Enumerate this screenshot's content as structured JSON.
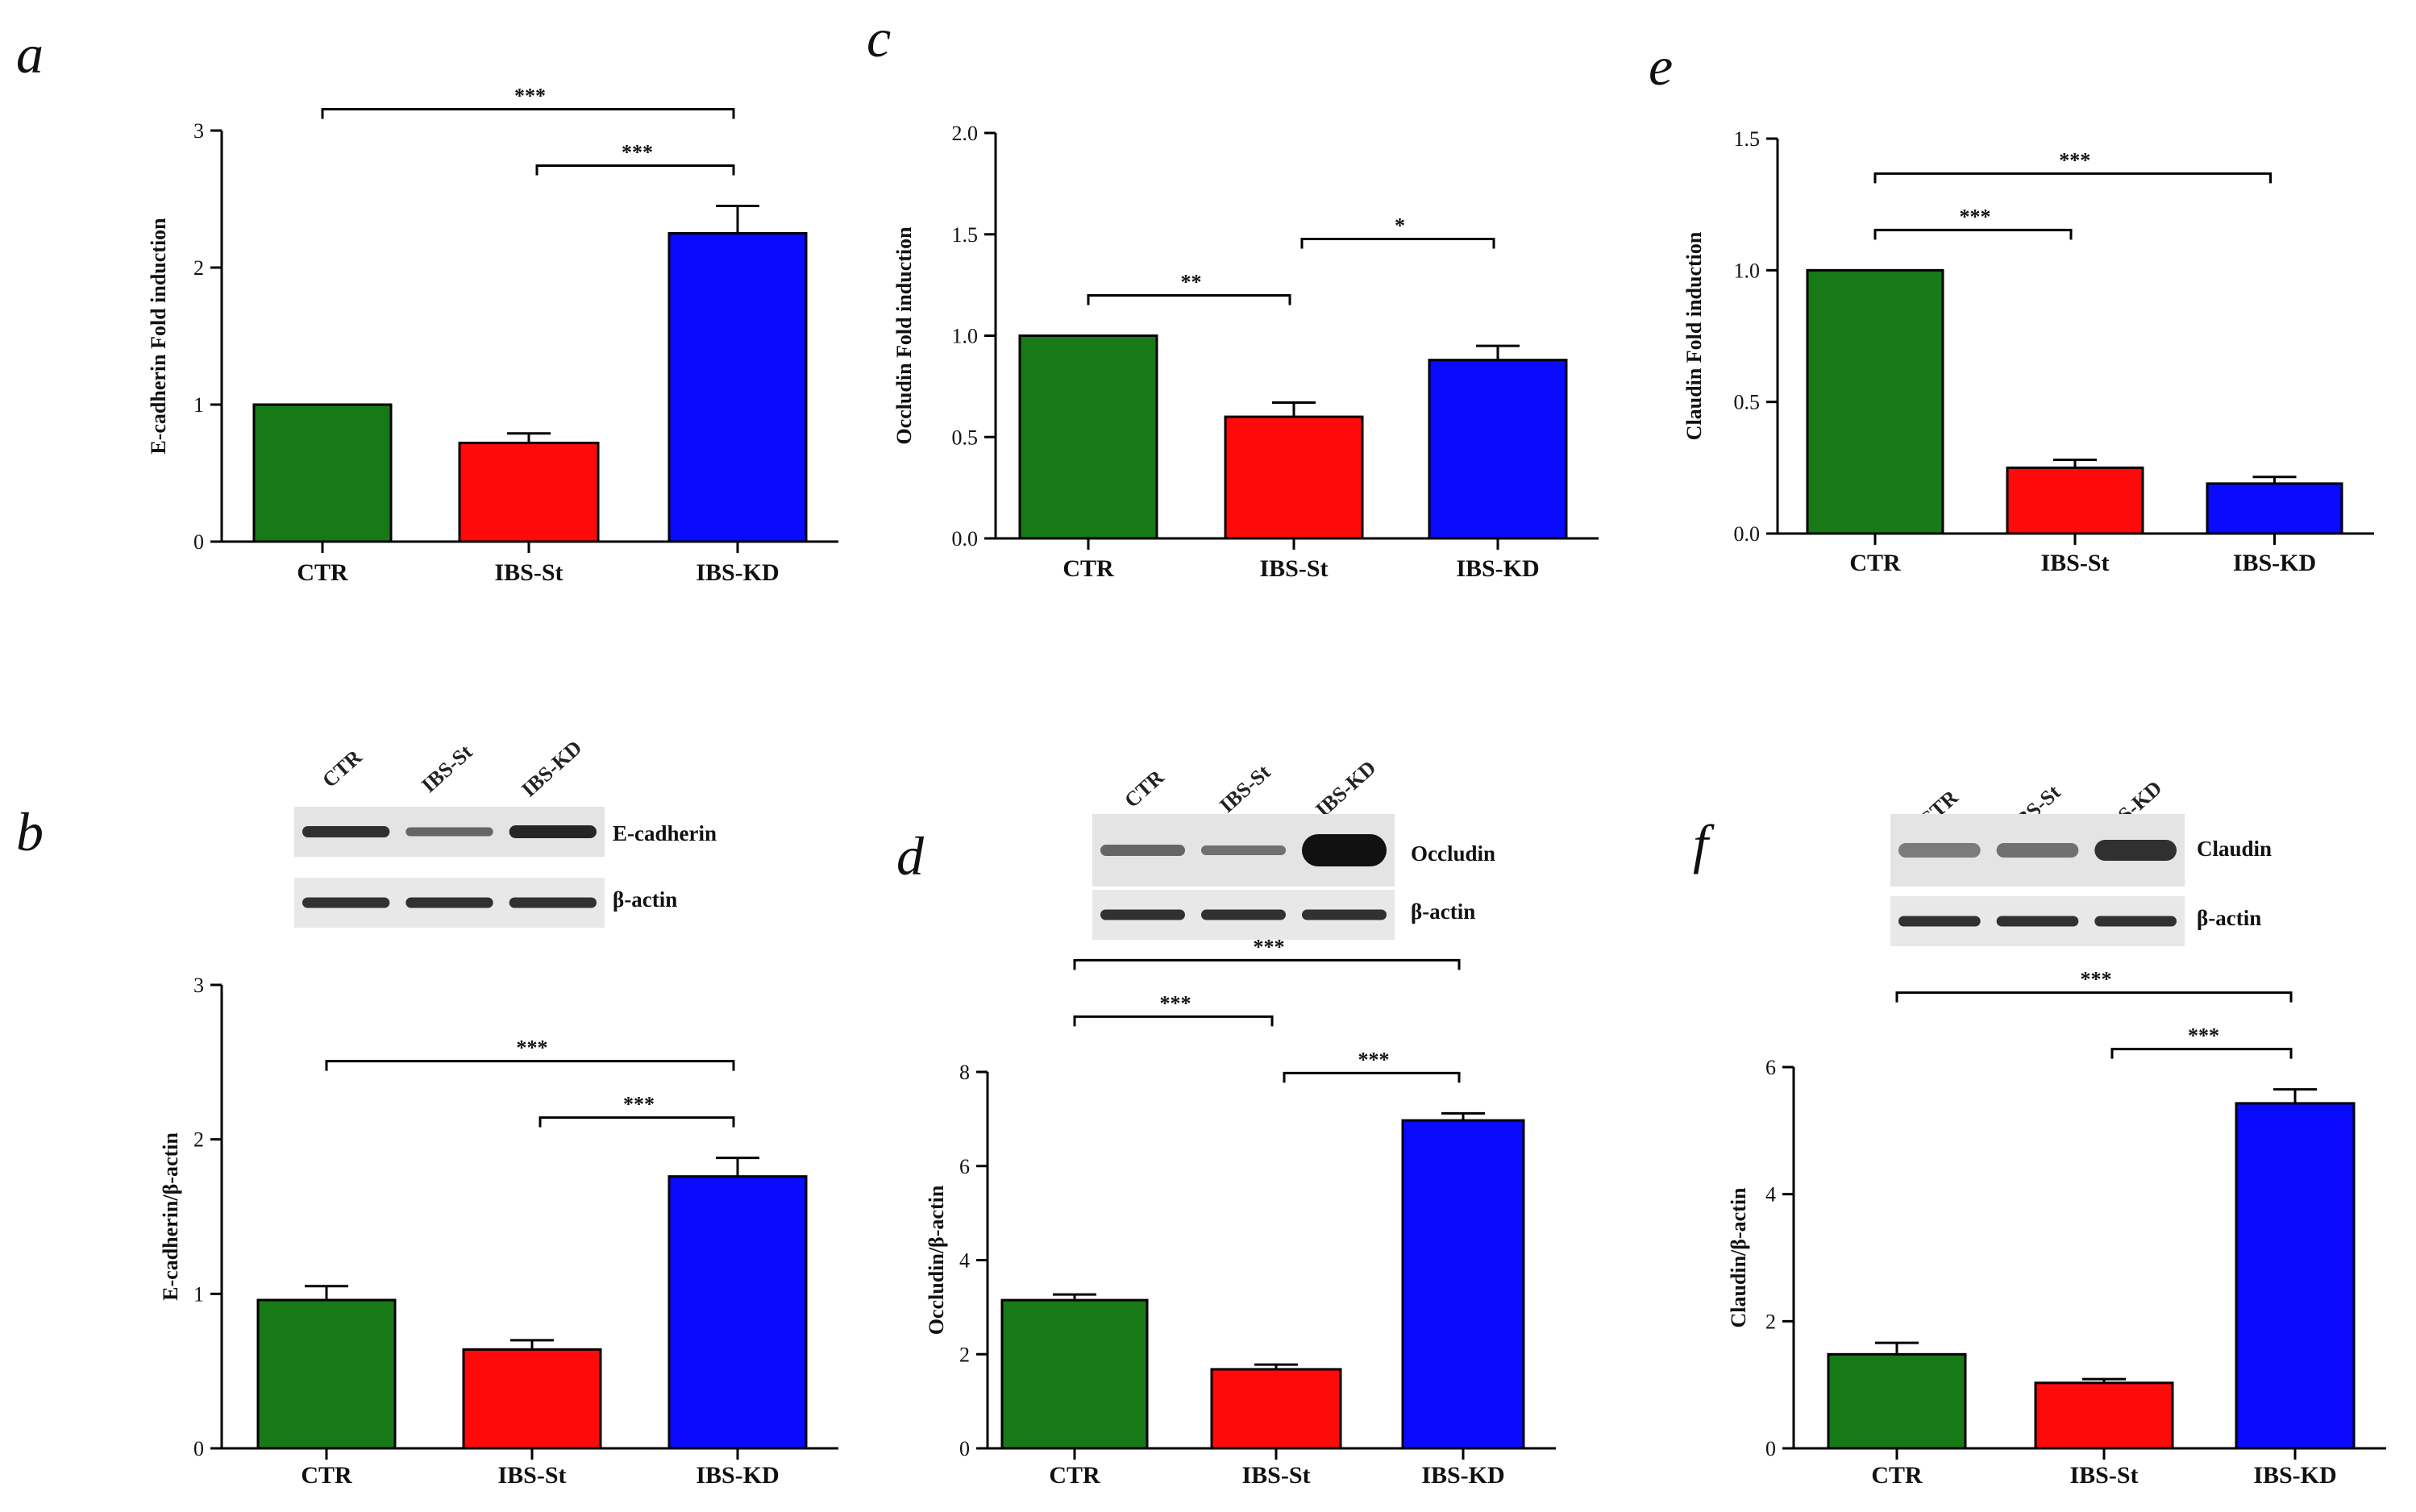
{
  "colors": {
    "ctr": "#177a17",
    "ibs_st": "#ff0a0a",
    "ibs_kd": "#0a0aff",
    "axis": "#000000"
  },
  "chart_data": [
    {
      "panel": "a",
      "type": "bar",
      "categories": [
        "CTR",
        "IBS-St",
        "IBS-KD"
      ],
      "values": [
        1.0,
        0.72,
        2.25
      ],
      "errors": [
        0,
        0.07,
        0.2
      ],
      "ylabel": "E-cadherin Fold induction",
      "ylim": [
        0,
        3
      ],
      "ticks": [
        {
          "v": 0,
          "label": "0"
        },
        {
          "v": 1,
          "label": "1"
        },
        {
          "v": 2,
          "label": "2"
        },
        {
          "v": 3,
          "label": "3"
        }
      ],
      "significance": [
        {
          "from": 0,
          "to": 2,
          "label": "***"
        },
        {
          "from": 1,
          "to": 2,
          "label": "***"
        }
      ]
    },
    {
      "panel": "c",
      "type": "bar",
      "categories": [
        "CTR",
        "IBS-St",
        "IBS-KD"
      ],
      "values": [
        1.0,
        0.6,
        0.88
      ],
      "errors": [
        0,
        0.07,
        0.07
      ],
      "ylabel": "Occludin Fold induction",
      "ylim": [
        0,
        2.0
      ],
      "ticks": [
        {
          "v": 0,
          "label": "0.0"
        },
        {
          "v": 0.5,
          "label": "0.5"
        },
        {
          "v": 1.0,
          "label": "1.0"
        },
        {
          "v": 1.5,
          "label": "1.5"
        },
        {
          "v": 2.0,
          "label": "2.0"
        }
      ],
      "significance": [
        {
          "from": 0,
          "to": 1,
          "label": "**"
        },
        {
          "from": 1,
          "to": 2,
          "label": "*"
        }
      ]
    },
    {
      "panel": "e",
      "type": "bar",
      "categories": [
        "CTR",
        "IBS-St",
        "IBS-KD"
      ],
      "values": [
        1.0,
        0.25,
        0.19
      ],
      "errors": [
        0,
        0.03,
        0.025
      ],
      "ylabel": "Claudin Fold induction",
      "ylim": [
        0,
        1.5
      ],
      "ticks": [
        {
          "v": 0,
          "label": "0.0"
        },
        {
          "v": 0.5,
          "label": "0.5"
        },
        {
          "v": 1.0,
          "label": "1.0"
        },
        {
          "v": 1.5,
          "label": "1.5"
        }
      ],
      "significance": [
        {
          "from": 0,
          "to": 2,
          "label": "***"
        },
        {
          "from": 0,
          "to": 1,
          "label": "***"
        }
      ]
    },
    {
      "panel": "b",
      "type": "bar",
      "categories": [
        "CTR",
        "IBS-St",
        "IBS-KD"
      ],
      "values": [
        0.96,
        0.64,
        1.76
      ],
      "errors": [
        0.09,
        0.06,
        0.12
      ],
      "ylabel": "E-cadherin/β-actin",
      "ylim": [
        0,
        3
      ],
      "ticks": [
        {
          "v": 0,
          "label": "0"
        },
        {
          "v": 1,
          "label": "1"
        },
        {
          "v": 2,
          "label": "2"
        },
        {
          "v": 3,
          "label": "3"
        }
      ],
      "significance": [
        {
          "from": 0,
          "to": 2,
          "label": "***"
        },
        {
          "from": 1,
          "to": 2,
          "label": "***"
        }
      ],
      "blot": {
        "lanes": [
          "CTR",
          "IBS-St",
          "IBS-KD"
        ],
        "protein": "E-cadherin",
        "loading": "β-actin"
      }
    },
    {
      "panel": "d",
      "type": "bar",
      "categories": [
        "CTR",
        "IBS-St",
        "IBS-KD"
      ],
      "values": [
        3.15,
        1.68,
        6.97
      ],
      "errors": [
        0.12,
        0.1,
        0.15
      ],
      "ylabel": "Occludin/β-actin",
      "ylim": [
        0,
        8
      ],
      "ticks": [
        {
          "v": 0,
          "label": "0"
        },
        {
          "v": 2,
          "label": "2"
        },
        {
          "v": 4,
          "label": "4"
        },
        {
          "v": 6,
          "label": "6"
        },
        {
          "v": 8,
          "label": "8"
        }
      ],
      "significance": [
        {
          "from": 0,
          "to": 2,
          "label": "***"
        },
        {
          "from": 1,
          "to": 2,
          "label": "***"
        },
        {
          "from": 0,
          "to": 1,
          "label": "***"
        }
      ],
      "blot": {
        "lanes": [
          "CTR",
          "IBS-St",
          "IBS-KD"
        ],
        "protein": "Occludin",
        "loading": "β-actin"
      }
    },
    {
      "panel": "f",
      "type": "bar",
      "categories": [
        "CTR",
        "IBS-St",
        "IBS-KD"
      ],
      "values": [
        1.48,
        1.03,
        5.43
      ],
      "errors": [
        0.18,
        0.06,
        0.22
      ],
      "ylabel": "Claudin/β-actin",
      "ylim": [
        0,
        6
      ],
      "ticks": [
        {
          "v": 0,
          "label": "0"
        },
        {
          "v": 2,
          "label": "2"
        },
        {
          "v": 4,
          "label": "4"
        },
        {
          "v": 6,
          "label": "6"
        }
      ],
      "significance": [
        {
          "from": 0,
          "to": 2,
          "label": "***"
        },
        {
          "from": 1,
          "to": 2,
          "label": "***"
        }
      ],
      "blot": {
        "lanes": [
          "CTR",
          "IBS-St",
          "IBS-KD"
        ],
        "protein": "Claudin",
        "loading": "β-actin"
      }
    }
  ]
}
